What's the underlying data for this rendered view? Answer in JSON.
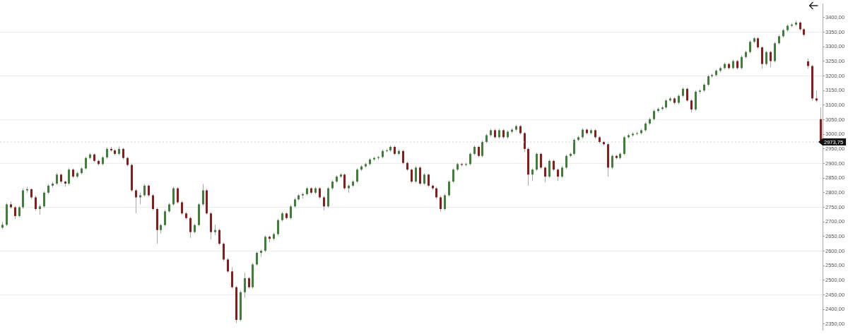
{
  "chart_data": {
    "type": "candlestick",
    "categories": [
      null,
      null,
      null,
      null,
      null,
      null,
      null,
      null,
      null,
      null,
      null,
      null,
      null,
      null,
      null,
      null,
      null,
      null,
      null,
      null,
      null,
      null,
      null,
      null,
      null,
      null,
      null,
      null,
      null,
      null,
      null,
      null,
      null,
      null,
      null,
      null,
      null,
      null,
      null,
      null,
      null,
      null,
      null,
      null,
      null,
      null,
      null,
      null,
      null,
      null,
      null,
      null,
      null,
      null,
      null,
      null,
      null,
      null,
      null,
      null,
      null,
      null,
      null,
      null,
      null,
      null,
      null,
      null,
      null,
      null,
      null,
      null,
      null,
      null,
      null,
      null,
      null,
      null,
      null,
      null,
      null,
      null,
      null,
      null,
      null,
      null,
      null,
      null,
      null,
      null,
      null,
      null,
      null,
      null,
      null,
      null,
      null,
      null,
      null,
      null,
      null,
      null,
      null,
      null,
      null,
      null,
      null,
      null,
      null,
      null,
      null,
      null,
      null,
      null,
      null,
      null,
      null,
      null,
      null,
      null,
      null,
      null,
      null,
      null,
      null,
      null,
      null,
      null,
      null,
      null,
      null,
      null,
      null,
      null,
      null,
      null,
      null,
      null,
      null,
      null,
      null,
      null,
      null,
      null,
      null,
      null,
      null,
      null,
      null,
      null,
      null,
      null,
      null,
      null,
      null,
      null,
      null,
      null,
      null,
      null,
      null,
      null,
      null,
      null,
      null,
      null,
      null,
      null,
      null,
      null,
      null,
      null,
      null,
      null,
      null,
      null,
      null,
      null,
      null,
      null,
      null,
      null,
      null,
      null,
      null,
      null,
      null,
      null,
      null,
      null,
      null,
      null,
      null,
      null,
      null,
      null,
      null
    ],
    "ohlc": [
      [
        2680,
        2700,
        2675,
        2690
      ],
      [
        2690,
        2765,
        2685,
        2760
      ],
      [
        2760,
        2770,
        2745,
        2750
      ],
      [
        2750,
        2755,
        2710,
        2720
      ],
      [
        2720,
        2755,
        2715,
        2750
      ],
      [
        2750,
        2815,
        2745,
        2808
      ],
      [
        2808,
        2820,
        2800,
        2812
      ],
      [
        2812,
        2815,
        2778,
        2784
      ],
      [
        2784,
        2790,
        2738,
        2744
      ],
      [
        2744,
        2760,
        2725,
        2753
      ],
      [
        2753,
        2805,
        2748,
        2800
      ],
      [
        2800,
        2830,
        2795,
        2824
      ],
      [
        2824,
        2837,
        2818,
        2831
      ],
      [
        2831,
        2868,
        2826,
        2862
      ],
      [
        2862,
        2866,
        2832,
        2838
      ],
      [
        2838,
        2842,
        2820,
        2831
      ],
      [
        2831,
        2884,
        2826,
        2879
      ],
      [
        2879,
        2883,
        2850,
        2855
      ],
      [
        2855,
        2872,
        2850,
        2867
      ],
      [
        2867,
        2888,
        2862,
        2883
      ],
      [
        2883,
        2924,
        2878,
        2919
      ],
      [
        2919,
        2936,
        2914,
        2931
      ],
      [
        2931,
        2935,
        2904,
        2909
      ],
      [
        2909,
        2913,
        2893,
        2898
      ],
      [
        2898,
        2926,
        2893,
        2921
      ],
      [
        2921,
        2955,
        2916,
        2950
      ],
      [
        2950,
        2957,
        2940,
        2945
      ],
      [
        2945,
        2949,
        2928,
        2933
      ],
      [
        2933,
        2958,
        2928,
        2950
      ],
      [
        2950,
        2954,
        2914,
        2919
      ],
      [
        2919,
        2923,
        2890,
        2895
      ],
      [
        2895,
        2900,
        2803,
        2808
      ],
      [
        2808,
        2813,
        2729,
        2784
      ],
      [
        2784,
        2800,
        2760,
        2791
      ],
      [
        2791,
        2830,
        2786,
        2824
      ],
      [
        2824,
        2828,
        2786,
        2791
      ],
      [
        2791,
        2796,
        2739,
        2744
      ],
      [
        2744,
        2749,
        2625,
        2672
      ],
      [
        2672,
        2694,
        2660,
        2689
      ],
      [
        2689,
        2741,
        2684,
        2736
      ],
      [
        2736,
        2765,
        2731,
        2760
      ],
      [
        2760,
        2820,
        2755,
        2815
      ],
      [
        2815,
        2819,
        2762,
        2767
      ],
      [
        2767,
        2772,
        2724,
        2729
      ],
      [
        2729,
        2734,
        2708,
        2713
      ],
      [
        2713,
        2718,
        2645,
        2665
      ],
      [
        2665,
        2694,
        2660,
        2689
      ],
      [
        2689,
        2765,
        2684,
        2760
      ],
      [
        2760,
        2830,
        2755,
        2808
      ],
      [
        2808,
        2813,
        2724,
        2729
      ],
      [
        2729,
        2734,
        2640,
        2665
      ],
      [
        2665,
        2690,
        2655,
        2672
      ],
      [
        2672,
        2677,
        2620,
        2625
      ],
      [
        2625,
        2630,
        2566,
        2571
      ],
      [
        2571,
        2576,
        2525,
        2530
      ],
      [
        2530,
        2545,
        2471,
        2476
      ],
      [
        2476,
        2481,
        2353,
        2364
      ],
      [
        2364,
        2464,
        2359,
        2459
      ],
      [
        2459,
        2525,
        2440,
        2507
      ],
      [
        2507,
        2512,
        2471,
        2476
      ],
      [
        2476,
        2559,
        2471,
        2554
      ],
      [
        2554,
        2599,
        2549,
        2594
      ],
      [
        2594,
        2606,
        2580,
        2601
      ],
      [
        2601,
        2654,
        2596,
        2649
      ],
      [
        2649,
        2653,
        2630,
        2642
      ],
      [
        2642,
        2663,
        2637,
        2658
      ],
      [
        2658,
        2711,
        2653,
        2706
      ],
      [
        2706,
        2734,
        2701,
        2729
      ],
      [
        2729,
        2733,
        2708,
        2713
      ],
      [
        2713,
        2758,
        2708,
        2753
      ],
      [
        2753,
        2782,
        2748,
        2777
      ],
      [
        2777,
        2796,
        2772,
        2791
      ],
      [
        2791,
        2800,
        2780,
        2795
      ],
      [
        2795,
        2820,
        2790,
        2815
      ],
      [
        2815,
        2819,
        2795,
        2800
      ],
      [
        2800,
        2820,
        2795,
        2815
      ],
      [
        2815,
        2819,
        2779,
        2784
      ],
      [
        2784,
        2789,
        2740,
        2753
      ],
      [
        2753,
        2820,
        2748,
        2815
      ],
      [
        2815,
        2843,
        2810,
        2838
      ],
      [
        2838,
        2860,
        2833,
        2855
      ],
      [
        2855,
        2867,
        2850,
        2862
      ],
      [
        2862,
        2866,
        2810,
        2815
      ],
      [
        2815,
        2829,
        2800,
        2824
      ],
      [
        2824,
        2843,
        2819,
        2838
      ],
      [
        2838,
        2884,
        2833,
        2879
      ],
      [
        2879,
        2895,
        2874,
        2890
      ],
      [
        2890,
        2903,
        2885,
        2898
      ],
      [
        2898,
        2919,
        2893,
        2914
      ],
      [
        2914,
        2924,
        2909,
        2919
      ],
      [
        2919,
        2926,
        2912,
        2922
      ],
      [
        2922,
        2948,
        2917,
        2943
      ],
      [
        2943,
        2950,
        2938,
        2945
      ],
      [
        2945,
        2962,
        2940,
        2957
      ],
      [
        2957,
        2961,
        2928,
        2933
      ],
      [
        2933,
        2948,
        2928,
        2943
      ],
      [
        2943,
        2947,
        2897,
        2902
      ],
      [
        2902,
        2906,
        2874,
        2879
      ],
      [
        2879,
        2883,
        2833,
        2838
      ],
      [
        2838,
        2891,
        2833,
        2886
      ],
      [
        2886,
        2890,
        2826,
        2831
      ],
      [
        2831,
        2867,
        2826,
        2862
      ],
      [
        2862,
        2866,
        2819,
        2824
      ],
      [
        2824,
        2828,
        2810,
        2815
      ],
      [
        2815,
        2819,
        2779,
        2784
      ],
      [
        2784,
        2789,
        2735,
        2744
      ],
      [
        2744,
        2796,
        2739,
        2791
      ],
      [
        2791,
        2843,
        2786,
        2838
      ],
      [
        2838,
        2884,
        2833,
        2879
      ],
      [
        2879,
        2903,
        2874,
        2898
      ],
      [
        2898,
        2902,
        2890,
        2895
      ],
      [
        2895,
        2903,
        2890,
        2898
      ],
      [
        2898,
        2938,
        2893,
        2933
      ],
      [
        2933,
        2962,
        2928,
        2957
      ],
      [
        2957,
        2961,
        2921,
        2926
      ],
      [
        2926,
        2979,
        2921,
        2974
      ],
      [
        2974,
        3002,
        2969,
        2997
      ],
      [
        2997,
        3019,
        2992,
        3014
      ],
      [
        3014,
        3018,
        2985,
        2990
      ],
      [
        2990,
        3019,
        2985,
        3014
      ],
      [
        3014,
        3018,
        2985,
        2990
      ],
      [
        2990,
        3014,
        2985,
        3009
      ],
      [
        3009,
        3021,
        3004,
        3016
      ],
      [
        3016,
        3033,
        3011,
        3028
      ],
      [
        3028,
        3032,
        2999,
        3004
      ],
      [
        3004,
        3008,
        2940,
        2950
      ],
      [
        2950,
        2955,
        2824,
        2862
      ],
      [
        2862,
        2884,
        2840,
        2879
      ],
      [
        2879,
        2938,
        2874,
        2933
      ],
      [
        2933,
        2937,
        2881,
        2886
      ],
      [
        2886,
        2890,
        2835,
        2855
      ],
      [
        2855,
        2914,
        2850,
        2909
      ],
      [
        2909,
        2913,
        2874,
        2879
      ],
      [
        2879,
        2883,
        2840,
        2855
      ],
      [
        2855,
        2891,
        2850,
        2886
      ],
      [
        2886,
        2931,
        2881,
        2926
      ],
      [
        2926,
        2938,
        2921,
        2933
      ],
      [
        2933,
        2986,
        2928,
        2981
      ],
      [
        2981,
        2995,
        2976,
        2990
      ],
      [
        2990,
        3021,
        2985,
        3016
      ],
      [
        3016,
        3020,
        2999,
        3004
      ],
      [
        3004,
        3019,
        2999,
        3014
      ],
      [
        3014,
        3018,
        2985,
        2990
      ],
      [
        2990,
        2994,
        2969,
        2974
      ],
      [
        2974,
        2978,
        2961,
        2966
      ],
      [
        2966,
        2970,
        2855,
        2886
      ],
      [
        2886,
        2931,
        2881,
        2926
      ],
      [
        2926,
        2930,
        2914,
        2919
      ],
      [
        2919,
        2938,
        2914,
        2933
      ],
      [
        2933,
        2995,
        2928,
        2990
      ],
      [
        2990,
        3002,
        2985,
        2997
      ],
      [
        2997,
        3007,
        2992,
        3002
      ],
      [
        3002,
        3009,
        2997,
        3004
      ],
      [
        3004,
        3019,
        2999,
        3014
      ],
      [
        3014,
        3042,
        3009,
        3037
      ],
      [
        3037,
        3057,
        3032,
        3052
      ],
      [
        3052,
        3085,
        3047,
        3080
      ],
      [
        3080,
        3092,
        3075,
        3087
      ],
      [
        3087,
        3097,
        3082,
        3092
      ],
      [
        3092,
        3121,
        3087,
        3116
      ],
      [
        3116,
        3128,
        3111,
        3123
      ],
      [
        3123,
        3127,
        3103,
        3108
      ],
      [
        3108,
        3137,
        3103,
        3132
      ],
      [
        3132,
        3161,
        3127,
        3156
      ],
      [
        3156,
        3160,
        3111,
        3116
      ],
      [
        3116,
        3120,
        3075,
        3085
      ],
      [
        3085,
        3151,
        3080,
        3146
      ],
      [
        3146,
        3155,
        3140,
        3150
      ],
      [
        3150,
        3175,
        3145,
        3170
      ],
      [
        3170,
        3204,
        3165,
        3199
      ],
      [
        3199,
        3208,
        3194,
        3203
      ],
      [
        3203,
        3223,
        3198,
        3218
      ],
      [
        3218,
        3232,
        3213,
        3227
      ],
      [
        3227,
        3246,
        3222,
        3241
      ],
      [
        3241,
        3245,
        3222,
        3227
      ],
      [
        3227,
        3256,
        3222,
        3251
      ],
      [
        3251,
        3255,
        3222,
        3227
      ],
      [
        3227,
        3270,
        3222,
        3265
      ],
      [
        3265,
        3287,
        3260,
        3282
      ],
      [
        3282,
        3322,
        3277,
        3317
      ],
      [
        3317,
        3334,
        3312,
        3329
      ],
      [
        3329,
        3333,
        3293,
        3298
      ],
      [
        3298,
        3302,
        3225,
        3241
      ],
      [
        3241,
        3287,
        3236,
        3282
      ],
      [
        3282,
        3286,
        3230,
        3251
      ],
      [
        3251,
        3317,
        3246,
        3312
      ],
      [
        3312,
        3341,
        3307,
        3336
      ],
      [
        3336,
        3362,
        3331,
        3357
      ],
      [
        3357,
        3377,
        3352,
        3372
      ],
      [
        3372,
        3381,
        3367,
        3376
      ],
      [
        3376,
        3390,
        3371,
        3383
      ],
      [
        3383,
        3387,
        3355,
        3360
      ],
      [
        3360,
        3364,
        3336,
        3341
      ],
      [
        3250,
        3260,
        3225,
        3234
      ],
      [
        3234,
        3238,
        3115,
        3123
      ],
      [
        3123,
        3150,
        3110,
        3116
      ],
      [
        3052,
        3092,
        2973.75,
        2973.75
      ]
    ],
    "ylim": [
      2329,
      3447
    ],
    "yticks": [
      {
        "value": 2350,
        "label": "2350,00"
      },
      {
        "value": 2400,
        "label": "2400,00"
      },
      {
        "value": 2450,
        "label": "2450,00"
      },
      {
        "value": 2500,
        "label": "2500,00"
      },
      {
        "value": 2550,
        "label": "2550,00"
      },
      {
        "value": 2600,
        "label": "2600,00"
      },
      {
        "value": 2650,
        "label": "2650,00"
      },
      {
        "value": 2700,
        "label": "2700,00"
      },
      {
        "value": 2750,
        "label": "2750,00"
      },
      {
        "value": 2800,
        "label": "2800,00"
      },
      {
        "value": 2850,
        "label": "2850,00"
      },
      {
        "value": 2900,
        "label": "2900,00"
      },
      {
        "value": 2950,
        "label": "2950,00"
      },
      {
        "value": 3000,
        "label": "3000,00"
      },
      {
        "value": 3050,
        "label": "3050,00"
      },
      {
        "value": 3100,
        "label": "3100,00"
      },
      {
        "value": 3150,
        "label": "3150,00"
      },
      {
        "value": 3200,
        "label": "3200,00"
      },
      {
        "value": 3250,
        "label": "3250,00"
      },
      {
        "value": 3300,
        "label": "3300,00"
      },
      {
        "value": 3350,
        "label": "3350,00"
      },
      {
        "value": 3400,
        "label": "3400,00"
      }
    ],
    "ref_lines": [
      {
        "axis": "y",
        "value": 2973.75,
        "label": "2973,75"
      }
    ],
    "grid": "y",
    "tick_labels": "y"
  }
}
